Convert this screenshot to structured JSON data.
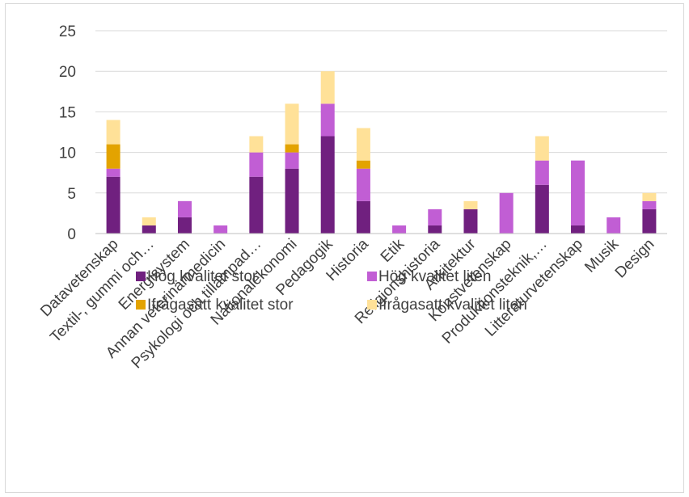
{
  "chart_data": {
    "type": "bar",
    "stacked": true,
    "categories": [
      "Datavetenskap",
      "Textil-, gummi och…",
      "Energisystem",
      "Annan veterinärmedicin",
      "Psykologi och tillämpad…",
      "Nationalekonomi",
      "Pedagogik",
      "Historia",
      "Etik",
      "Religionshistoria",
      "Arkitektur",
      "Konstvetenskap",
      "Produktionsteknik,…",
      "Litteraturvetenskap",
      "Musik",
      "Design"
    ],
    "series": [
      {
        "name": "Hög kvalitet stor",
        "color": "#70207f",
        "values": [
          7,
          1,
          2,
          0,
          7,
          8,
          12,
          4,
          0,
          1,
          3,
          0,
          6,
          1,
          0,
          3
        ]
      },
      {
        "name": "Hög kvalitet liten",
        "color": "#c15ed4",
        "values": [
          1,
          0,
          2,
          1,
          3,
          2,
          4,
          4,
          1,
          2,
          0,
          5,
          3,
          8,
          2,
          1
        ]
      },
      {
        "name": "Ifrågasatt kvalitet stor",
        "color": "#e3a300",
        "values": [
          3,
          0,
          0,
          0,
          0,
          1,
          0,
          1,
          0,
          0,
          0,
          0,
          0,
          0,
          0,
          0
        ]
      },
      {
        "name": "Ifrågasatt  kvalitet liten",
        "color": "#ffe198",
        "values": [
          3,
          1,
          0,
          0,
          2,
          5,
          4,
          4,
          0,
          0,
          1,
          0,
          3,
          0,
          0,
          1
        ]
      }
    ],
    "ylim": [
      0,
      25
    ],
    "yticks": [
      0,
      5,
      10,
      15,
      20,
      25
    ],
    "grid": true,
    "legend_position": "bottom"
  }
}
